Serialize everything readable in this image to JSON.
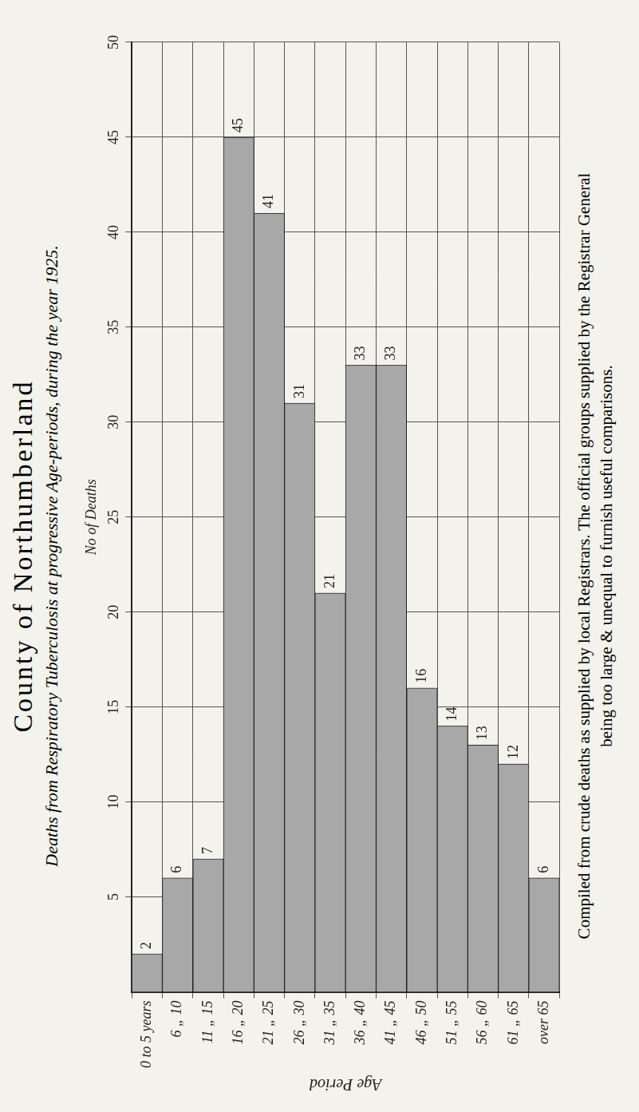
{
  "chart_data": {
    "type": "bar",
    "orientation": "horizontal",
    "title": "County of Northumberland",
    "subtitle": "Deaths from Respiratory Tuberculosis at progressive Age-periods, during the year 1925.",
    "x_label": "No of Deaths",
    "y_label": "Age Period",
    "annotations": [
      "Compiled from crude deaths as supplied by local Registrars. The official groups supplied by the Registrar General",
      "being too large & unequal to furnish useful comparisons."
    ],
    "categories": [
      "0 to 5 years",
      "6 „ 10",
      "11 „ 15",
      "16 „ 20",
      "21 „ 25",
      "26 „ 30",
      "31 „ 35",
      "36 „ 40",
      "41 „ 45",
      "46 „ 50",
      "51 „ 55",
      "56 „ 60",
      "61 „ 65",
      "over 65"
    ],
    "values": [
      2,
      6,
      7,
      45,
      41,
      31,
      21,
      33,
      33,
      16,
      14,
      13,
      12,
      6
    ],
    "color": "#a8a8a8",
    "xlim": [
      0,
      50
    ],
    "xticks": [
      5,
      10,
      15,
      20,
      25,
      30,
      35,
      40,
      45,
      50
    ],
    "grid": true,
    "data_labels": true
  }
}
